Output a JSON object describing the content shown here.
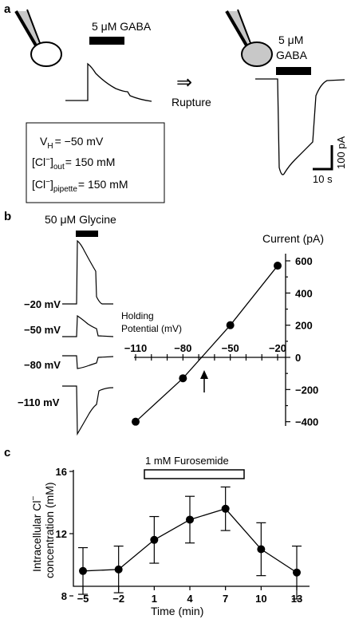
{
  "panel_a": {
    "letter": "a",
    "gaba_left": "5 μM GABA",
    "gaba_right_line1": "5 μM",
    "gaba_right_line2": "GABA",
    "rupture": "Rupture",
    "arrow": "⇒",
    "scale_current": "100 pA",
    "scale_time": "10 s",
    "conditions": {
      "vh_prefix": "V",
      "vh_sub": "H",
      "vh_value": "= −50 mV",
      "cl_out_prefix": "[Cl",
      "cl_out_sup": "−",
      "cl_out_close": "]",
      "cl_out_sub": "out",
      "cl_out_value": "= 150 mM",
      "cl_pip_prefix": "[Cl",
      "cl_pip_sup": "−",
      "cl_pip_close": "]",
      "cl_pip_sub": "pipette",
      "cl_pip_value": "= 150 mM"
    }
  },
  "panel_b": {
    "letter": "b",
    "glycine": "50 μM Glycine",
    "trace_labels": [
      "−20 mV",
      "−50 mV",
      "−80 mV",
      "−110 mV"
    ],
    "current_title": "Current (pA)",
    "holding_line1": "Holding",
    "holding_line2": "Potential (mV)"
  },
  "panel_c": {
    "letter": "c",
    "furosemide": "1 mM Furosemide",
    "ylabel_line1": "Intracellular Cl",
    "ylabel_sup": "−",
    "ylabel_line2": "concentration (mM)",
    "xlabel": "Time (min)"
  },
  "chart_data": [
    {
      "type": "line",
      "panel": "b",
      "xlabel": "Holding Potential (mV)",
      "ylabel": "Current (pA)",
      "x": [
        -110,
        -80,
        -50,
        -20
      ],
      "values": [
        -400,
        -130,
        200,
        570
      ],
      "x_ticks": [
        -110,
        -80,
        -50,
        -20
      ],
      "y_ticks": [
        600,
        400,
        200,
        0,
        -200,
        -400
      ],
      "xlim": [
        -115,
        -15
      ],
      "ylim": [
        -440,
        640
      ]
    },
    {
      "type": "line",
      "panel": "c",
      "xlabel": "Time (min)",
      "ylabel": "Intracellular Cl− concentration (mM)",
      "categories": [
        "−5",
        "−2",
        "1",
        "4",
        "7",
        "10",
        "13"
      ],
      "values": [
        9.6,
        9.7,
        11.6,
        12.9,
        13.6,
        11.0,
        9.5
      ],
      "errors": [
        1.5,
        1.5,
        1.5,
        1.5,
        1.4,
        1.7,
        1.7
      ],
      "y_ticks": [
        8,
        12,
        16
      ],
      "ylim": [
        7,
        16.5
      ]
    }
  ]
}
